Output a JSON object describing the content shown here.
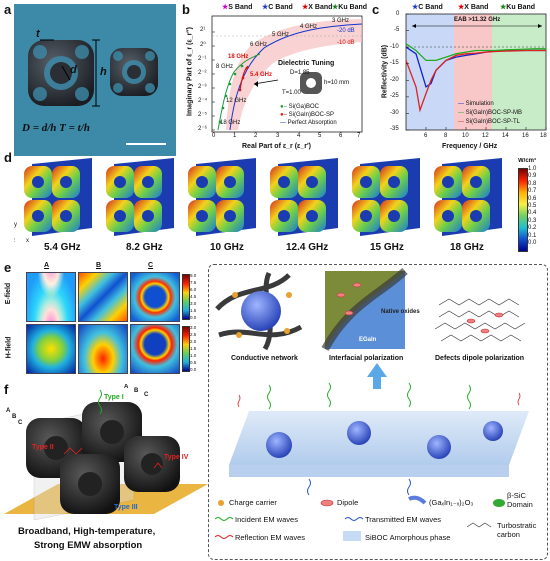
{
  "panels": {
    "a": "a",
    "b": "b",
    "c": "c",
    "d": "d",
    "e": "e",
    "f": "f"
  },
  "panel_a": {
    "label_t": "t",
    "label_d": "d",
    "label_h": "h",
    "formula": "D = d/h  T = t/h"
  },
  "panel_b": {
    "band_labels": [
      "S Band",
      "C Band",
      "X Band",
      "Ku Band"
    ],
    "band_colors": [
      "#cc00cc",
      "#1a3cc8",
      "#e00000",
      "#118811"
    ],
    "ylabel": "Imaginary Part of ε_r (ε_r″)",
    "xlabel": "Real Part of ε_r (ε_r′)",
    "y_ticks": [
      "2¹",
      "2⁰",
      "2⁻¹",
      "2⁻²",
      "2⁻³",
      "2⁻⁴",
      "2⁻⁵",
      "2⁻⁶"
    ],
    "x_ticks": [
      "0",
      "1",
      "2",
      "3",
      "4",
      "5",
      "6",
      "7"
    ],
    "annotations": [
      "3 GHz",
      "4 GHz",
      "5 GHz",
      "6 GHz",
      "8 GHz",
      "12 GHz",
      "18 GHz",
      "18 GHz",
      "5.4 GHz",
      "-20 dB",
      "-10 dB"
    ],
    "dielectric_tuning": "Dielectric Tuning",
    "inset_labels": [
      "D=1.85",
      "T=1.00",
      "h=10 mm"
    ],
    "legend": [
      "Si(Ga)BOC",
      "Si(GaIn)BOC-SP",
      "Perfect Absorption"
    ],
    "legend_colors": [
      "#1a9a3a",
      "#dd1111",
      "#1133cc"
    ]
  },
  "panel_c": {
    "band_labels": [
      "C Band",
      "X Band",
      "Ku Band"
    ],
    "band_colors": [
      "#1a3cc8",
      "#e00000",
      "#118811"
    ],
    "eab": "EAB >11.32 GHz",
    "ylabel": "Reflectivity (dB)",
    "xlabel": "Frequency / GHz",
    "y_ticks": [
      "0",
      "-5",
      "-10",
      "-15",
      "-20",
      "-25",
      "-30",
      "-35"
    ],
    "x_ticks": [
      "6",
      "8",
      "10",
      "12",
      "14",
      "16",
      "18"
    ],
    "legend": [
      "Simulation",
      "Si(GaIn)BOC-SP-MB",
      "Si(GaIn)BOC-SP-TL"
    ],
    "legend_colors": [
      "#1122cc",
      "#22aa22",
      "#dd2222"
    ]
  },
  "panel_d": {
    "freqs": [
      "5.4 GHz",
      "8.2 GHz",
      "10 GHz",
      "12.4 GHz",
      "15 GHz",
      "18 GHz"
    ],
    "colorbar_title": "W/cm³",
    "colorbar_ticks": [
      "1.0",
      "0.9",
      "0.8",
      "0.7",
      "0.6",
      "0.5",
      "0.4",
      "0.3",
      "0.2",
      "0.1",
      "0.0"
    ],
    "axes": [
      "y",
      "z",
      "x"
    ]
  },
  "panel_e": {
    "cols": [
      "A",
      "B",
      "C"
    ],
    "rows": [
      "E-field",
      "H-field"
    ],
    "cb_e_ticks": [
      "9.0",
      "7.5",
      "6.0",
      "4.5",
      "3.0",
      "1.5",
      "0.0"
    ],
    "cb_h_ticks": [
      "3.0",
      "2.5",
      "2.0",
      "1.5",
      "1.0",
      "0.5",
      "0.0"
    ]
  },
  "mechanism": {
    "captions": [
      "Conductive network",
      "Interfacial polarization",
      "Defects dipole polarization"
    ],
    "native_oxides": "Native oxides",
    "egain": "EGaIn",
    "legend": [
      {
        "label": "Charge carrier"
      },
      {
        "label": "Dipole"
      },
      {
        "label": "(GaₓIn₁₋ₓ)₂O₃"
      },
      {
        "label": "β-SiC Domain"
      },
      {
        "label": "Incident EM waves"
      },
      {
        "label": "Transmitted EM waves"
      },
      {
        "label": "Turbostratic carbon"
      },
      {
        "label": "Reflection EM waves"
      },
      {
        "label": "SiBOC Amorphous phase"
      }
    ]
  },
  "panel_f": {
    "labels": [
      "A",
      "B",
      "C",
      "A",
      "B",
      "C"
    ],
    "types": [
      "Type I",
      "Type II",
      "Type III",
      "Type IV"
    ],
    "caption1": "Broadband, High-temperature,",
    "caption2": "Strong EMW absorption"
  },
  "chart_data": [
    {
      "type": "line",
      "title": "",
      "xlabel": "Frequency / GHz",
      "ylabel": "Reflectivity (dB)",
      "xlim": [
        4,
        18
      ],
      "ylim": [
        -35,
        0
      ],
      "series": [
        {
          "name": "Simulation",
          "x": [
            4,
            5,
            5.5,
            6,
            6.5,
            7,
            8,
            9,
            10,
            11,
            12,
            13,
            14,
            15,
            16,
            17,
            18
          ],
          "values": [
            -10,
            -12,
            -17,
            -22,
            -21,
            -17,
            -14,
            -13,
            -12.5,
            -12,
            -11.5,
            -11,
            -11,
            -11,
            -11,
            -11,
            -11
          ]
        },
        {
          "name": "Si(GaIn)BOC-SP-MB",
          "x": [
            4,
            5,
            6,
            7,
            8,
            9,
            10,
            11,
            12,
            13,
            14,
            15,
            16,
            17,
            18
          ],
          "values": [
            -9,
            -11,
            -14,
            -14,
            -13,
            -12,
            -11.5,
            -11,
            -11,
            -11,
            -10.8,
            -10.7,
            -10.6,
            -10.5,
            -10.5
          ]
        },
        {
          "name": "Si(GaIn)BOC-SP-TL",
          "x": [
            4,
            5,
            5.4,
            6,
            6.5,
            7,
            8,
            9,
            10,
            11,
            12,
            13,
            14,
            15,
            16,
            17,
            18
          ],
          "values": [
            -14,
            -22,
            -29,
            -24,
            -20,
            -17,
            -14,
            -12.5,
            -12,
            -11.8,
            -11.5,
            -11.3,
            -11.2,
            -11.1,
            -11,
            -11,
            -11
          ]
        }
      ]
    }
  ]
}
